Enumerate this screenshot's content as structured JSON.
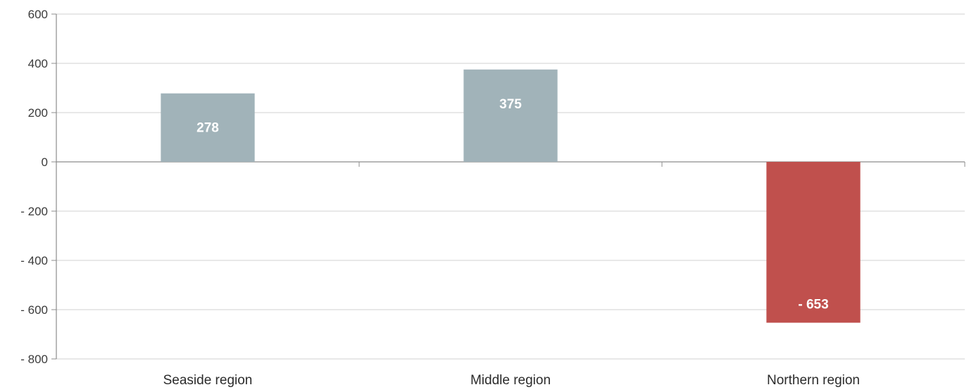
{
  "chart_data": {
    "type": "bar",
    "categories": [
      "Seaside region",
      "Middle region",
      "Northern region"
    ],
    "values": [
      278,
      375,
      -653
    ],
    "data_labels": [
      "278",
      "375",
      "- 653"
    ],
    "ylim": [
      -800,
      600
    ],
    "yticks": [
      600,
      400,
      200,
      0,
      -200,
      -400,
      -600,
      -800
    ],
    "ytick_labels": [
      "600",
      "400",
      "200",
      "0",
      "- 200",
      "- 400",
      "- 600",
      "- 800"
    ],
    "grid": true,
    "legend": "none",
    "colors": {
      "positive": "#a1b3b9",
      "negative": "#c0504d",
      "grid": "#d9d9d9",
      "axis": "#8c8c8c"
    }
  }
}
